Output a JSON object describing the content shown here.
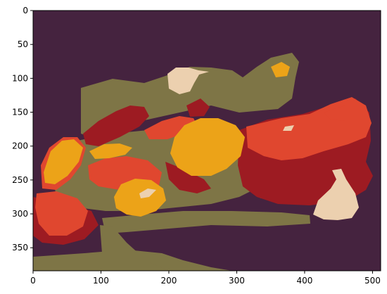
{
  "image": {
    "description_kind": "color-quantized photograph",
    "palette": {
      "background": "#45233f",
      "olive": "#7e7546",
      "dark_red": "#9d1b22",
      "red_orange": "#e0472f",
      "yellow_orange": "#eca318",
      "cream": "#ecd0af"
    }
  },
  "axes": {
    "x_range": [
      0,
      512
    ],
    "y_range": [
      384,
      0
    ],
    "x_ticks": [
      "0",
      "100",
      "200",
      "300",
      "400",
      "500"
    ],
    "y_ticks": [
      "0",
      "50",
      "100",
      "150",
      "200",
      "250",
      "300",
      "350"
    ],
    "grid": false
  }
}
